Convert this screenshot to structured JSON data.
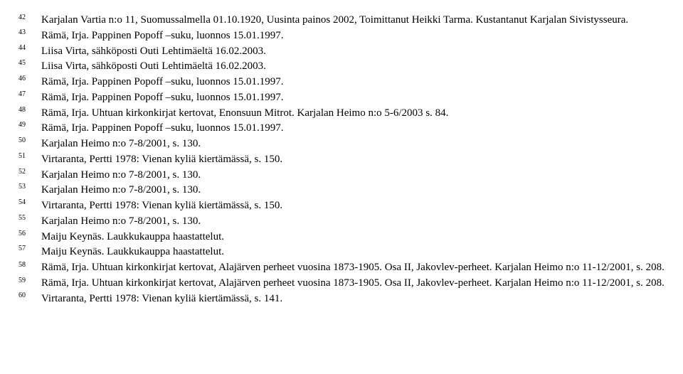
{
  "references": [
    {
      "num": "42",
      "text": "Karjalan Vartia n:o 11, Suomussalmella 01.10.1920, Uusinta painos 2002, Toimittanut Heikki Tarma. Kustantanut Karjalan Sivistysseura.",
      "hanging": true
    },
    {
      "num": "43",
      "text": "Rämä, Irja. Pappinen Popoff –suku, luonnos 15.01.1997."
    },
    {
      "num": "44",
      "text": "Liisa Virta, sähköposti Outi Lehtimäeltä 16.02.2003."
    },
    {
      "num": "45",
      "text": "Liisa Virta, sähköposti Outi Lehtimäeltä 16.02.2003."
    },
    {
      "num": "46",
      "text": "Rämä, Irja. Pappinen Popoff –suku, luonnos 15.01.1997."
    },
    {
      "num": "47",
      "text": "Rämä, Irja. Pappinen Popoff –suku, luonnos 15.01.1997."
    },
    {
      "num": "48",
      "text": "Rämä, Irja. Uhtuan kirkonkirjat kertovat, Enonsuun Mitrot. Karjalan Heimo n:o 5-6/2003 s. 84."
    },
    {
      "num": "49",
      "text": "Rämä, Irja. Pappinen Popoff –suku, luonnos 15.01.1997."
    },
    {
      "num": "50",
      "text": "Karjalan Heimo n:o 7-8/2001, s. 130."
    },
    {
      "num": "51",
      "text": "Virtaranta, Pertti 1978: Vienan kyliä kiertämässä, s. 150."
    },
    {
      "num": "52",
      "text": "Karjalan Heimo n:o 7-8/2001, s. 130."
    },
    {
      "num": "53",
      "text": "Karjalan Heimo n:o 7-8/2001, s. 130."
    },
    {
      "num": "54",
      "text": "Virtaranta, Pertti 1978: Vienan kyliä kiertämässä, s. 150."
    },
    {
      "num": "55",
      "text": "Karjalan Heimo n:o 7-8/2001, s. 130."
    },
    {
      "num": "56",
      "text": "Maiju Keynäs. Laukkukauppa haastattelut."
    },
    {
      "num": "57",
      "text": "Maiju Keynäs. Laukkukauppa haastattelut."
    },
    {
      "num": "58",
      "text": "Rämä, Irja. Uhtuan kirkonkirjat kertovat, Alajärven perheet vuosina 1873-1905. Osa II, Jakovlev-perheet. Karjalan Heimo n:o 11-12/2001, s. 208.",
      "hanging": true
    },
    {
      "num": "59",
      "text": "Rämä, Irja. Uhtuan kirkonkirjat kertovat, Alajärven perheet vuosina 1873-1905. Osa II, Jakovlev-perheet. Karjalan Heimo n:o 11-12/2001, s. 208.",
      "hanging": true
    },
    {
      "num": "60",
      "text": "Virtaranta, Pertti 1978: Vienan kyliä kiertämässä, s. 141."
    }
  ],
  "style": {
    "font_family": "Times New Roman",
    "font_size_pt": 12,
    "sup_font_size_pt": 8,
    "background_color": "#ffffff",
    "text_color": "#000000",
    "line_height": 1.45
  }
}
